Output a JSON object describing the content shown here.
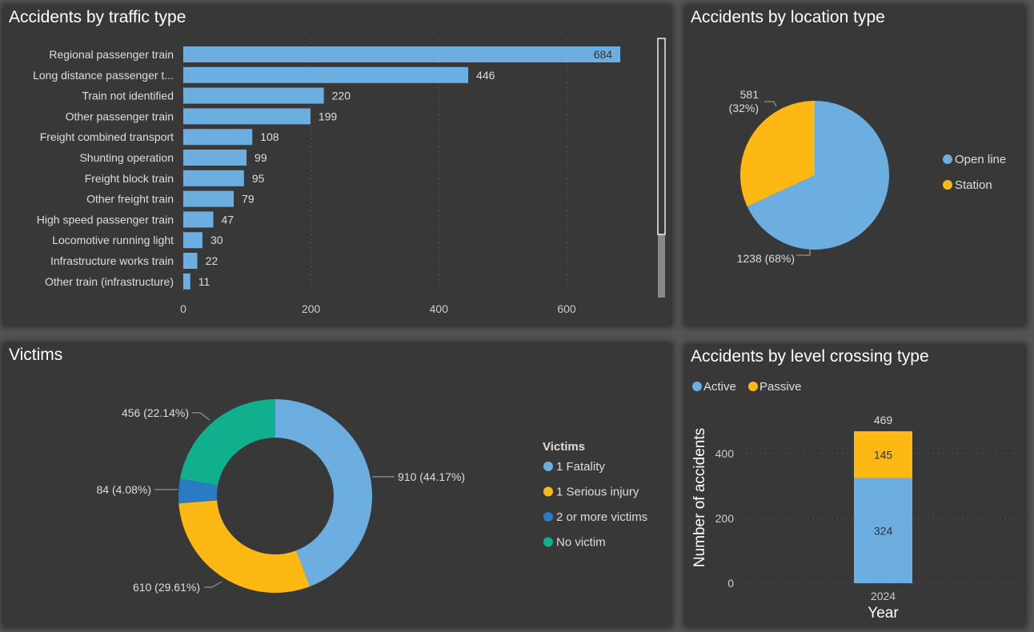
{
  "colors": {
    "blue": "#6caee0",
    "yellow": "#fdb813",
    "darkblue": "#2b7bc4",
    "teal": "#10b08f",
    "panel": "#383838"
  },
  "chart_data": [
    {
      "type": "bar",
      "orientation": "horizontal",
      "title": "Accidents by traffic type",
      "categories": [
        "Regional passenger train",
        "Long distance passenger t...",
        "Train not identified",
        "Other passenger train",
        "Freight combined transport",
        "Shunting operation",
        "Freight block train",
        "Other freight train",
        "High speed passenger train",
        "Locomotive running light",
        "Infrastructure works train",
        "Other train (infrastructure)"
      ],
      "values": [
        684,
        446,
        220,
        199,
        108,
        99,
        95,
        79,
        47,
        30,
        22,
        11
      ],
      "xticks": [
        "0",
        "200",
        "400",
        "600"
      ],
      "xlim": [
        0,
        700
      ],
      "grid": true,
      "color": "#6caee0"
    },
    {
      "type": "pie",
      "title": "Accidents by location type",
      "labels": [
        "Open line",
        "Station"
      ],
      "values": [
        1238,
        581
      ],
      "data_labels": [
        "1238 (68%)",
        "581 (32%)"
      ],
      "colors": [
        "#6caee0",
        "#fdb813"
      ],
      "legend": "right"
    },
    {
      "type": "pie",
      "donut": true,
      "title": "Victims",
      "legend_title": "Victims",
      "labels": [
        "1 Fatality",
        "1 Serious injury",
        "2 or more victims",
        "No victim"
      ],
      "values": [
        910,
        610,
        84,
        456
      ],
      "data_labels": [
        "910 (44.17%)",
        "610 (29.61%)",
        "84 (4.08%)",
        "456 (22.14%)"
      ],
      "colors": [
        "#6caee0",
        "#fdb813",
        "#2b7bc4",
        "#10b08f"
      ],
      "legend": "right"
    },
    {
      "type": "bar",
      "stacked": true,
      "title": "Accidents by level crossing type",
      "categories": [
        "2024"
      ],
      "series": [
        {
          "name": "Active",
          "values": [
            324
          ],
          "color": "#6caee0"
        },
        {
          "name": "Passive",
          "values": [
            145
          ],
          "color": "#fdb813"
        }
      ],
      "totals": [
        "469"
      ],
      "xlabel": "Year",
      "ylabel": "Number of accidents",
      "yticks": [
        "0",
        "200",
        "400"
      ],
      "ylim": [
        0,
        480
      ],
      "grid": true,
      "legend": "top-left"
    }
  ]
}
